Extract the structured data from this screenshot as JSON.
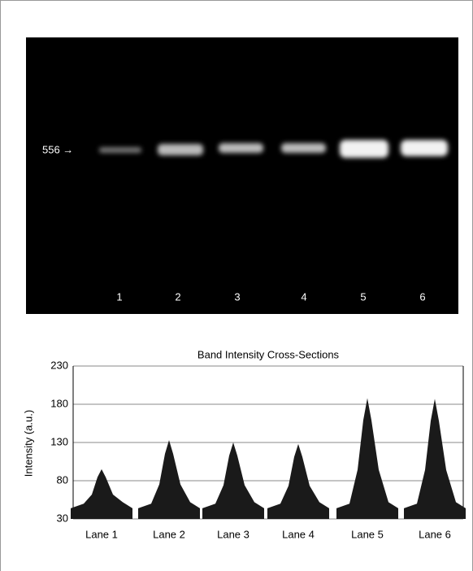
{
  "gel": {
    "marker_label": "556 →",
    "lanes": [
      "1",
      "2",
      "3",
      "4",
      "5",
      "6"
    ]
  },
  "chart_data": {
    "type": "area",
    "title": "Band Intensity Cross-Sections",
    "y_label": "Intensity (a.u.)",
    "categories": [
      "Lane 1",
      "Lane 2",
      "Lane 3",
      "Lane 4",
      "Lane 5",
      "Lane 6"
    ],
    "values": [
      95,
      133,
      130,
      128,
      188,
      187
    ],
    "color": "#1a1a1a",
    "ylim": [
      30,
      230
    ],
    "yticks": [
      30,
      80,
      130,
      180,
      230
    ],
    "grid": true
  }
}
